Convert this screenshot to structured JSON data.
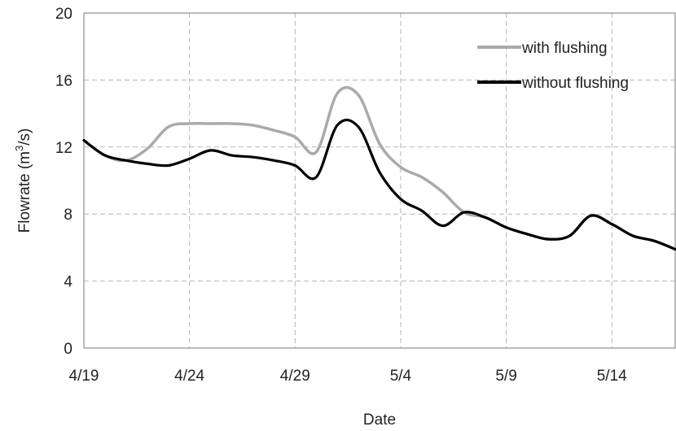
{
  "chart_data": {
    "type": "line",
    "title": "",
    "xlabel": "Date",
    "ylabel_parts": {
      "before": "Flowrate (m",
      "sup": "3",
      "after": "/s)"
    },
    "ylim": [
      0,
      20
    ],
    "yticks": [
      0,
      4,
      8,
      12,
      16,
      20
    ],
    "xlim": [
      "4/19",
      "5/17"
    ],
    "xticks": [
      "4/19",
      "4/24",
      "4/29",
      "5/4",
      "5/9",
      "5/14"
    ],
    "grid": true,
    "legend_position": "top-right",
    "x": [
      "4/19",
      "4/20",
      "4/21",
      "4/22",
      "4/23",
      "4/24",
      "4/25",
      "4/26",
      "4/27",
      "4/28",
      "4/29",
      "4/30",
      "5/1",
      "5/2",
      "5/3",
      "5/4",
      "5/5",
      "5/6",
      "5/7",
      "5/8",
      "5/9",
      "5/10",
      "5/11",
      "5/12",
      "5/13",
      "5/14",
      "5/15",
      "5/16",
      "5/17"
    ],
    "series": [
      {
        "name": "with flushing",
        "color": "#aaaaaa",
        "values": [
          12.4,
          11.5,
          11.2,
          11.9,
          13.2,
          13.4,
          13.4,
          13.4,
          13.3,
          13.0,
          12.6,
          11.7,
          15.2,
          15.1,
          12.2,
          10.8,
          10.2,
          9.3,
          8.1,
          7.8,
          7.2,
          6.8,
          6.5,
          6.7,
          7.9,
          7.4,
          6.7,
          6.4,
          5.9
        ]
      },
      {
        "name": "without flushing",
        "color": "#000000",
        "values": [
          12.4,
          11.5,
          11.2,
          11.0,
          10.9,
          11.3,
          11.8,
          11.5,
          11.4,
          11.2,
          10.9,
          10.2,
          13.3,
          13.2,
          10.5,
          8.9,
          8.2,
          7.3,
          8.1,
          7.8,
          7.2,
          6.8,
          6.5,
          6.7,
          7.9,
          7.4,
          6.7,
          6.4,
          5.9
        ]
      }
    ]
  }
}
